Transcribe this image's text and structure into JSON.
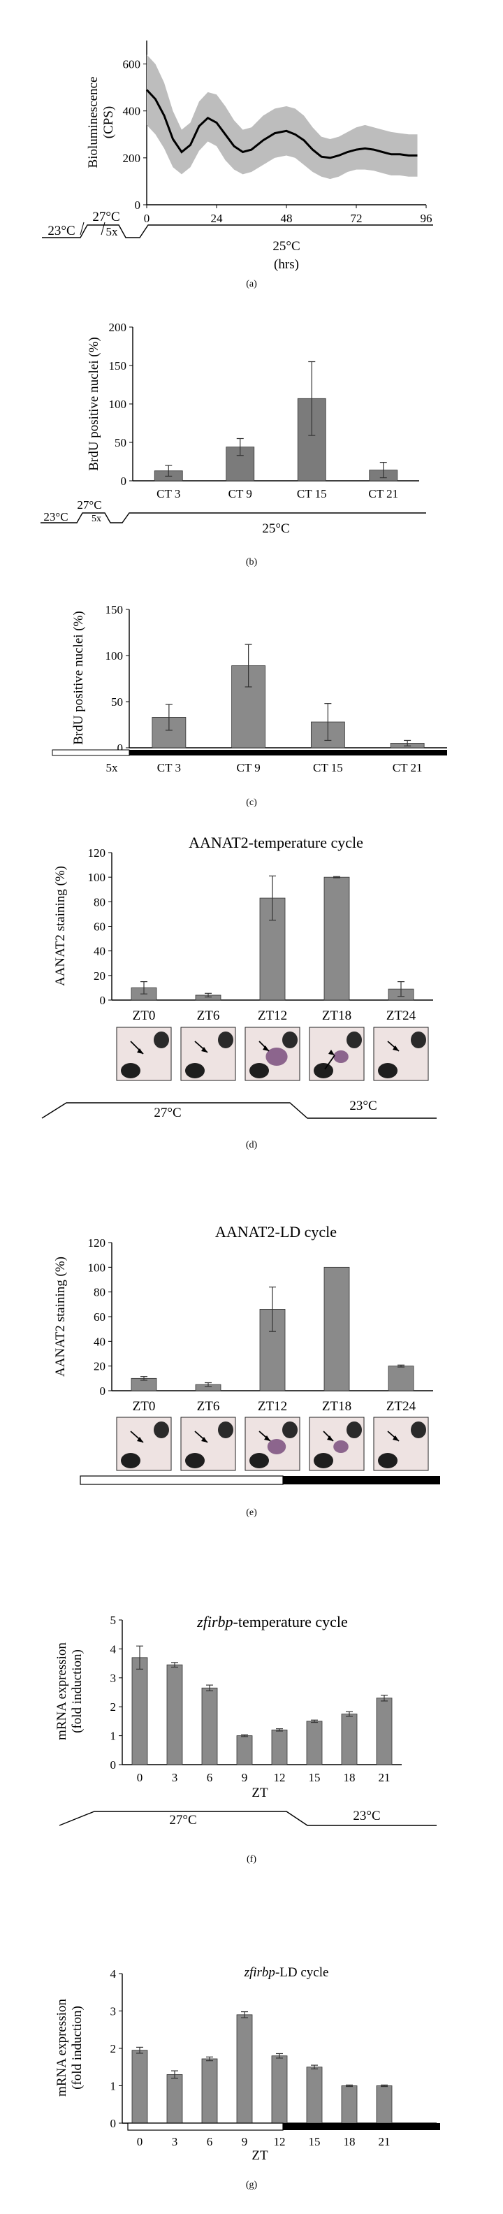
{
  "chart_data": [
    {
      "panel": "(a)",
      "type": "line",
      "ylabel": "Bioluminescence\n(CPS)",
      "xlabel": "(hrs)",
      "xlim": [
        0,
        96
      ],
      "ylim": [
        0,
        700
      ],
      "xticks": [
        "0",
        "24",
        "48",
        "72",
        "96"
      ],
      "yticks": [
        "0",
        "200",
        "400",
        "600"
      ],
      "schedule": {
        "high": "27°C",
        "low": "23°C",
        "cycles": "5x",
        "constant": "25°C"
      },
      "series": [
        {
          "x": [
            0,
            3,
            6,
            9,
            12,
            15,
            18,
            21,
            24,
            27,
            30,
            33,
            36,
            40,
            44,
            48,
            51,
            54,
            57,
            60,
            63,
            66,
            69,
            72,
            75,
            78,
            81,
            84,
            87,
            90,
            93
          ],
          "values": [
            490,
            450,
            380,
            280,
            225,
            255,
            335,
            370,
            350,
            300,
            250,
            225,
            235,
            275,
            305,
            315,
            300,
            275,
            235,
            205,
            200,
            210,
            225,
            235,
            240,
            235,
            225,
            215,
            215,
            210,
            210
          ],
          "upper": [
            640,
            600,
            520,
            400,
            320,
            350,
            440,
            480,
            470,
            420,
            360,
            320,
            330,
            380,
            410,
            420,
            410,
            380,
            330,
            290,
            280,
            290,
            310,
            330,
            340,
            330,
            320,
            310,
            305,
            300,
            300
          ],
          "lower": [
            340,
            300,
            240,
            160,
            130,
            160,
            230,
            270,
            250,
            190,
            150,
            130,
            140,
            170,
            200,
            210,
            200,
            170,
            140,
            120,
            110,
            120,
            140,
            150,
            150,
            145,
            135,
            125,
            125,
            120,
            120
          ]
        }
      ]
    },
    {
      "panel": "(b)",
      "type": "bar",
      "ylabel": "BrdU positive nuclei (%)",
      "ylim": [
        0,
        200
      ],
      "yticks": [
        "0",
        "50",
        "100",
        "150",
        "200"
      ],
      "categories": [
        "CT 3",
        "CT 9",
        "CT 15",
        "CT 21"
      ],
      "values": [
        13,
        44,
        107,
        14
      ],
      "errors": [
        7,
        11,
        48,
        10
      ],
      "schedule": {
        "high": "27°C",
        "low": "23°C",
        "cycles": "5x",
        "constant": "25°C"
      }
    },
    {
      "panel": "(c)",
      "type": "bar",
      "ylabel": "BrdU positive nuclei (%)",
      "ylim": [
        0,
        150
      ],
      "yticks": [
        "0",
        "50",
        "100",
        "150"
      ],
      "categories": [
        "CT 3",
        "CT 9",
        "CT 15",
        "CT 21"
      ],
      "values": [
        33,
        89,
        28,
        5
      ],
      "errors": [
        14,
        23,
        20,
        3
      ],
      "schedule": {
        "cycles": "5x"
      }
    },
    {
      "panel": "(d)",
      "type": "bar",
      "title": "AANAT2-temperature cycle",
      "ylabel": "AANAT2 staining (%)",
      "ylim": [
        0,
        120
      ],
      "yticks": [
        "0",
        "20",
        "40",
        "60",
        "80",
        "100",
        "120"
      ],
      "categories": [
        "ZT0",
        "ZT6",
        "ZT12",
        "ZT18",
        "ZT24"
      ],
      "values": [
        10,
        4,
        83,
        100,
        9
      ],
      "errors": [
        5,
        1.5,
        18,
        0.5,
        6
      ],
      "schedule": {
        "high": "27°C",
        "low": "23°C"
      }
    },
    {
      "panel": "(e)",
      "type": "bar",
      "title": "AANAT2-LD cycle",
      "ylabel": "AANAT2 staining (%)",
      "ylim": [
        0,
        120
      ],
      "yticks": [
        "0",
        "20",
        "40",
        "60",
        "80",
        "100",
        "120"
      ],
      "categories": [
        "ZT0",
        "ZT6",
        "ZT12",
        "ZT18",
        "ZT24"
      ],
      "values": [
        10,
        5,
        66,
        100,
        20
      ],
      "errors": [
        1.5,
        1.5,
        18,
        0,
        0.8
      ]
    },
    {
      "panel": "(f)",
      "type": "bar",
      "title_italic": "zfirbp",
      "title_rest": "-temperature cycle",
      "ylabel": "mRNA expression\n(fold induction)",
      "xlabel": "ZT",
      "ylim": [
        0,
        5
      ],
      "yticks": [
        "0",
        "1",
        "2",
        "3",
        "4",
        "5"
      ],
      "categories": [
        "0",
        "3",
        "6",
        "9",
        "12",
        "15",
        "18",
        "21"
      ],
      "values": [
        3.7,
        3.45,
        2.65,
        1.0,
        1.2,
        1.5,
        1.75,
        2.3
      ],
      "errors": [
        0.4,
        0.08,
        0.1,
        0.03,
        0.04,
        0.04,
        0.08,
        0.1
      ],
      "schedule": {
        "high": "27°C",
        "low": "23°C"
      }
    },
    {
      "panel": "(g)",
      "type": "bar",
      "title_italic": "zfirbp",
      "title_rest": "-LD cycle",
      "ylabel": "mRNA expression\n(fold induction)",
      "xlabel": "ZT",
      "ylim": [
        0,
        4
      ],
      "yticks": [
        "0",
        "1",
        "2",
        "3",
        "4"
      ],
      "categories": [
        "0",
        "3",
        "6",
        "9",
        "12",
        "15",
        "18",
        "21"
      ],
      "values": [
        1.95,
        1.3,
        1.72,
        2.9,
        1.8,
        1.5,
        1.0,
        1.0
      ],
      "errors": [
        0.08,
        0.1,
        0.05,
        0.08,
        0.06,
        0.05,
        0.02,
        0.02
      ]
    }
  ],
  "colors": {
    "bar": "#8a8a8a",
    "band": "#bdbdbd",
    "line": "#000000",
    "dark_period": "#000000",
    "purple_stain": "#7a4f7e"
  }
}
